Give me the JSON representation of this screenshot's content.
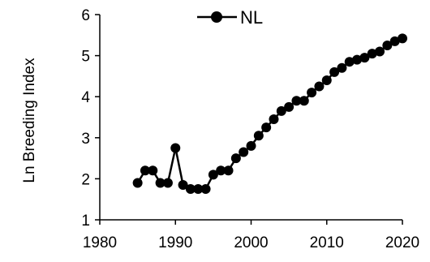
{
  "chart_data": {
    "type": "line",
    "title": "",
    "xlabel": "",
    "ylabel": "Ln Breeding Index",
    "xlim": [
      1980,
      2020
    ],
    "ylim": [
      1,
      6
    ],
    "x_ticks": [
      "1980",
      "1990",
      "2000",
      "2010",
      "2020"
    ],
    "y_ticks": [
      "1",
      "2",
      "3",
      "4",
      "5",
      "6"
    ],
    "grid": false,
    "legend_position": "top",
    "series": [
      {
        "name": "NL",
        "color": "#000000",
        "marker": "circle",
        "x": [
          1985,
          1986,
          1987,
          1988,
          1989,
          1990,
          1991,
          1992,
          1993,
          1994,
          1995,
          1996,
          1997,
          1998,
          1999,
          2000,
          2001,
          2002,
          2003,
          2004,
          2005,
          2006,
          2007,
          2008,
          2009,
          2010,
          2011,
          2012,
          2013,
          2014,
          2015,
          2016,
          2017,
          2018,
          2019,
          2020
        ],
        "y": [
          1.9,
          2.2,
          2.2,
          1.9,
          1.9,
          2.75,
          1.85,
          1.75,
          1.75,
          1.75,
          2.1,
          2.2,
          2.2,
          2.5,
          2.65,
          2.8,
          3.05,
          3.25,
          3.45,
          3.65,
          3.75,
          3.9,
          3.9,
          4.1,
          4.25,
          4.4,
          4.6,
          4.7,
          4.85,
          4.9,
          4.95,
          5.05,
          5.1,
          5.25,
          5.35,
          5.42
        ]
      }
    ]
  }
}
